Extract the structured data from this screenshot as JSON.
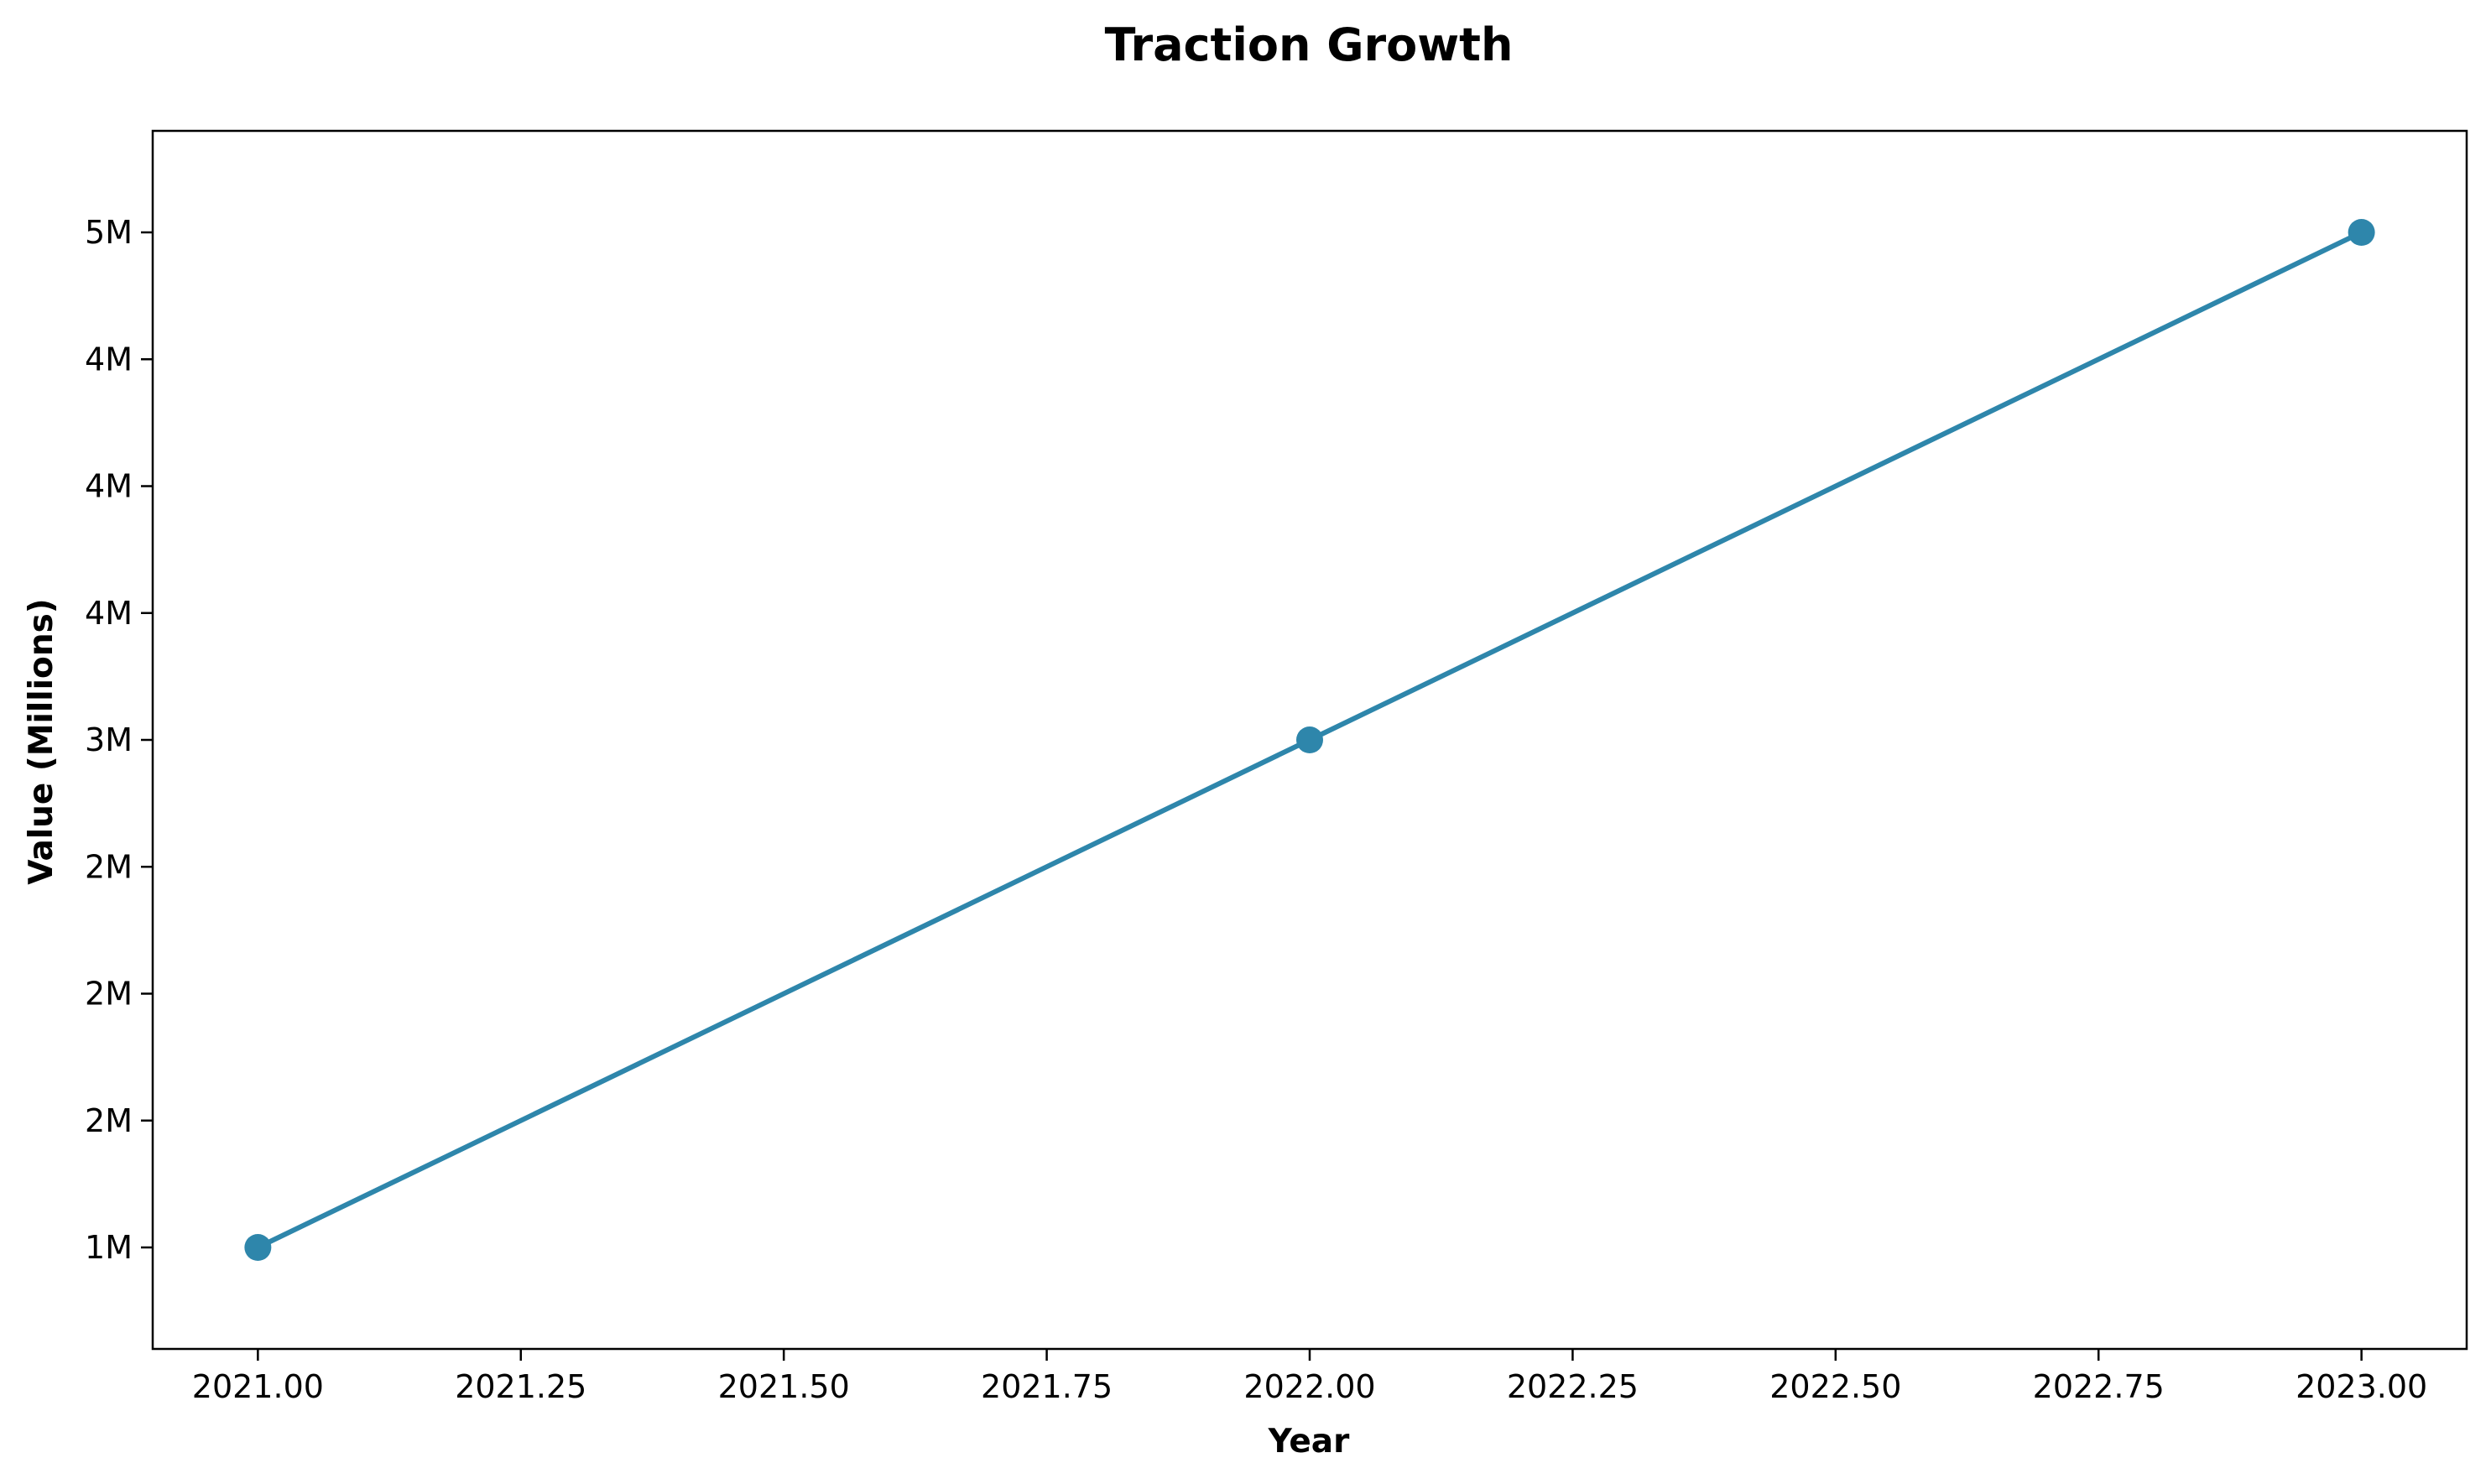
{
  "chart_data": {
    "type": "line",
    "title": "Traction Growth",
    "xlabel": "Year",
    "ylabel": "Value (Millions)",
    "xlim": [
      2020.9,
      2023.1
    ],
    "ylim": [
      0.6,
      5.4
    ],
    "x_ticks": [
      2021.0,
      2021.25,
      2021.5,
      2021.75,
      2022.0,
      2022.25,
      2022.5,
      2022.75,
      2023.0
    ],
    "x_tick_labels": [
      "2021.00",
      "2021.25",
      "2021.50",
      "2021.75",
      "2022.00",
      "2022.25",
      "2022.50",
      "2022.75",
      "2023.00"
    ],
    "y_ticks": [
      1.0,
      1.5,
      2.0,
      2.5,
      3.0,
      3.5,
      4.0,
      4.5,
      5.0
    ],
    "y_tick_labels": [
      "1M",
      "2M",
      "2M",
      "2M",
      "3M",
      "4M",
      "4M",
      "4M",
      "5M"
    ],
    "grid": false,
    "series": [
      {
        "x": [
          2021,
          2022,
          2023
        ],
        "values": [
          1.0,
          3.0,
          5.0
        ],
        "color": "#2e86ab",
        "marker": "circle"
      }
    ]
  }
}
